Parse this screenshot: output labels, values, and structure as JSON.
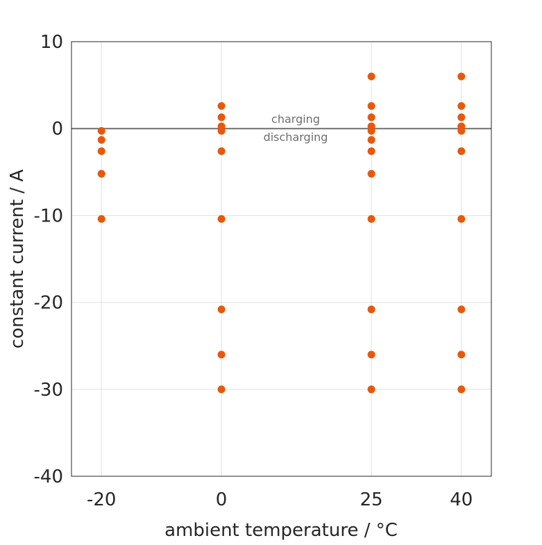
{
  "chart_data": {
    "type": "scatter",
    "title": "",
    "xlabel": "ambient temperature / °C",
    "ylabel": "constant current / A",
    "xlim": [
      -25,
      45
    ],
    "ylim": [
      -40,
      10
    ],
    "xticks": [
      -20,
      0,
      25,
      40
    ],
    "yticks": [
      10,
      0,
      -10,
      -20,
      -30,
      -40
    ],
    "grid": true,
    "annotations": {
      "above_zero": "charging",
      "below_zero": "discharging"
    },
    "colors": {
      "points": "#E8580C",
      "zero_line": "#6e6e6e",
      "grid": "#e0e0e0"
    },
    "series": [
      {
        "x": -20,
        "y": [
          -0.26,
          -1.3,
          -2.6,
          -5.2,
          -10.4
        ]
      },
      {
        "x": 0,
        "y": [
          2.6,
          1.3,
          0.26,
          -0.26,
          -2.6,
          -10.4,
          -20.8,
          -26,
          -30
        ]
      },
      {
        "x": 25,
        "y": [
          6,
          2.6,
          1.3,
          0.26,
          -0.26,
          -1.3,
          -2.6,
          -5.2,
          -10.4,
          -20.8,
          -26,
          -30
        ]
      },
      {
        "x": 40,
        "y": [
          6,
          2.6,
          1.3,
          0.26,
          -0.26,
          -2.6,
          -10.4,
          -20.8,
          -26,
          -30
        ]
      }
    ]
  }
}
